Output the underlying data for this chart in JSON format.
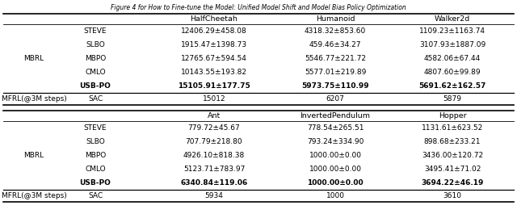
{
  "title": "Figure 4 for How to Fine-tune the Model: Unified Model Shift and Model Bias Policy Optimization",
  "col_headers_top": [
    "HalfCheetah",
    "Humanoid",
    "Walker2d"
  ],
  "col_headers_bottom": [
    "Ant",
    "InvertedPendulum",
    "Hopper"
  ],
  "row_label_mbrl": "MBRL",
  "row_label_mfrl": "MFRL(@3M steps)",
  "top_data": [
    [
      "STEVE",
      "12406.29±458.08",
      "4318.32±853.60",
      "1109.23±1163.74"
    ],
    [
      "SLBO",
      "1915.47±1398.73",
      "459.46±34.27",
      "3107.93±1887.09"
    ],
    [
      "MBPO",
      "12765.67±594.54",
      "5546.77±221.72",
      "4582.06±67.44"
    ],
    [
      "CMLO",
      "10143.55±193.82",
      "5577.01±219.89",
      "4807.60±99.89"
    ],
    [
      "USB-PO",
      "15105.91±177.75",
      "5973.75±110.99",
      "5691.62±162.57"
    ]
  ],
  "top_mfrl": [
    "SAC",
    "15012",
    "6207",
    "5879"
  ],
  "bottom_data": [
    [
      "STEVE",
      "779.72±45.67",
      "778.54±265.51",
      "1131.61±623.52"
    ],
    [
      "SLBO",
      "707.79±218.80",
      "793.24±334.90",
      "898.68±233.21"
    ],
    [
      "MBPO",
      "4926.10±818.38",
      "1000.00±0.00",
      "3436.00±120.72"
    ],
    [
      "CMLO",
      "5123.71±783.97",
      "1000.00±0.00",
      "3495.41±71.02"
    ],
    [
      "USB-PO",
      "6340.84±119.06",
      "1000.00±0.00",
      "3694.22±46.19"
    ]
  ],
  "bottom_mfrl": [
    "SAC",
    "5934",
    "1000",
    "3610"
  ],
  "font_size": 6.5,
  "header_font_size": 6.8,
  "title_font_size": 5.5
}
